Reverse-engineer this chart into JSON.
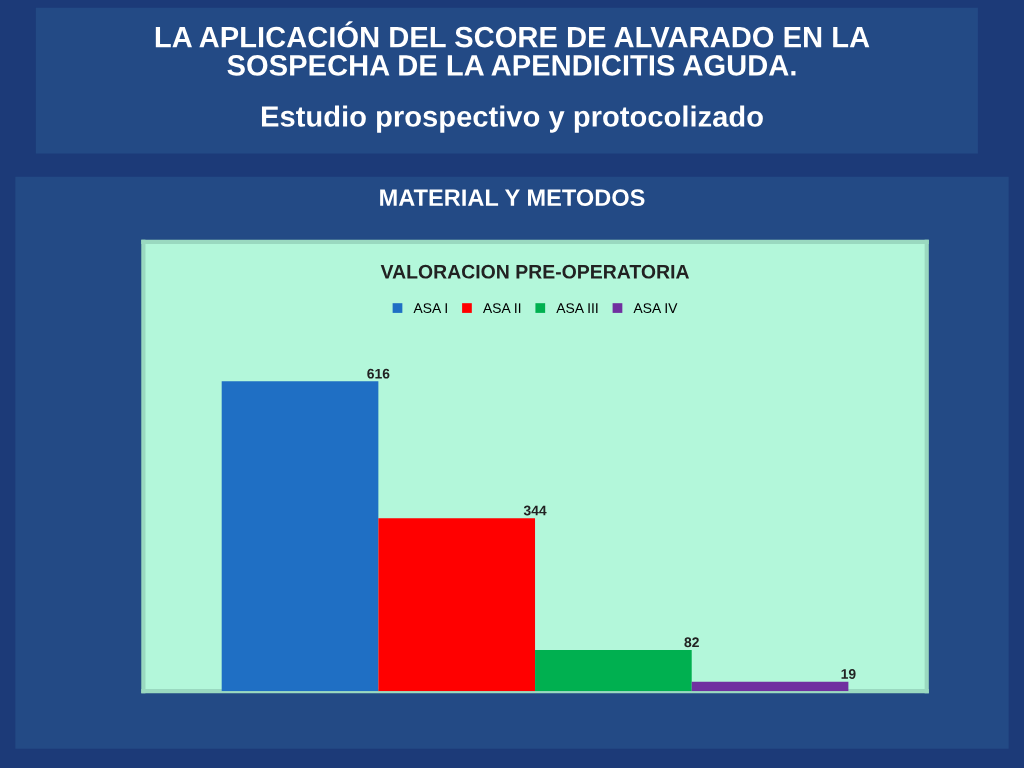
{
  "chart_data": {
    "type": "bar",
    "title": "VALORACION PRE-OPERATORIA",
    "annotations": [
      "LA APLICACIÓN DEL SCORE DE ALVARADO EN LA\nSOSPECHA DE LA APENDICITIS AGUDA.",
      "Estudio prospectivo y protocolizado",
      "MATERIAL Y METODOS"
    ],
    "categories": [
      null
    ],
    "series": [
      {
        "name": "ASA I",
        "color": "#1f6fc4",
        "values": [
          616
        ]
      },
      {
        "name": "ASA II",
        "color": "#ff0000",
        "values": [
          344
        ]
      },
      {
        "name": "ASA III",
        "color": "#00b050",
        "values": [
          82
        ]
      },
      {
        "name": "ASA IV",
        "color": "#7030a0",
        "values": [
          19
        ]
      }
    ],
    "data_labels": true,
    "legend": "top",
    "grid": false
  }
}
